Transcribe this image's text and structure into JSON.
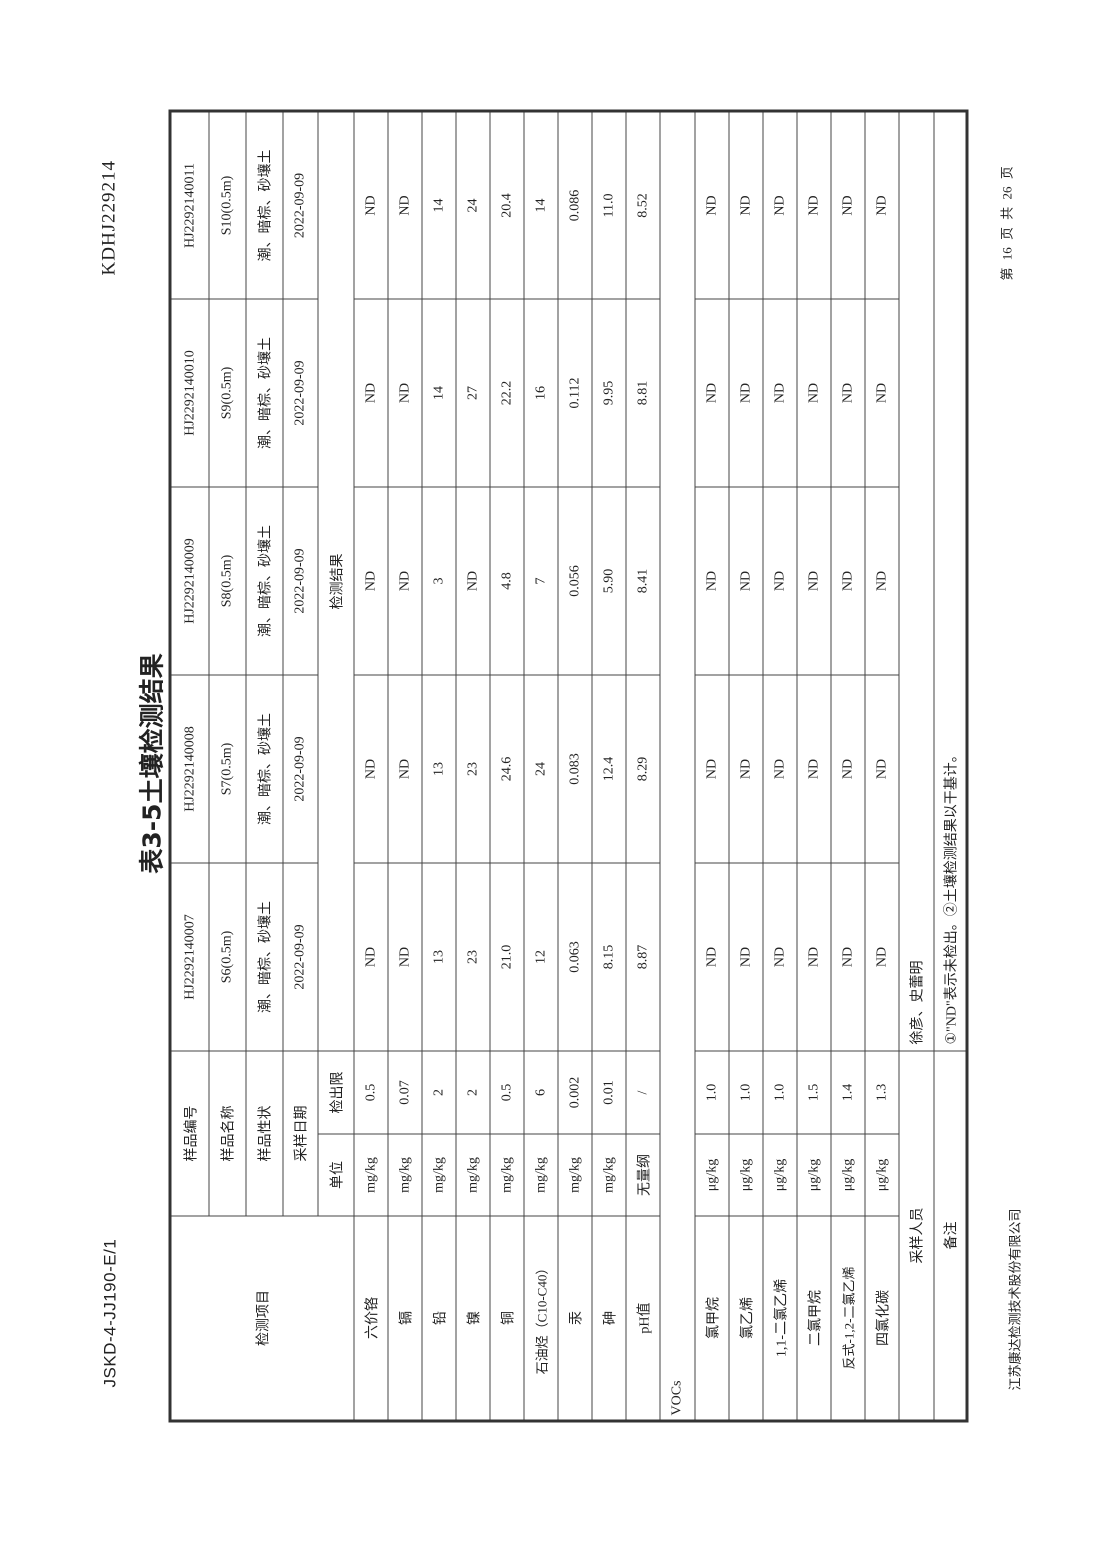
{
  "header": {
    "doc_code": "JSKD-4-JJ190-E/1",
    "report_no": "KDHJ229214"
  },
  "title": "表3-5土壤检测结果",
  "footer": {
    "company": "江苏康达检测技术股份有限公司",
    "page": "第 16 页 共 26 页"
  },
  "table": {
    "item_header": "检测项目",
    "meta_labels": [
      "样品编号",
      "样品名称",
      "样品性状",
      "采样日期"
    ],
    "unit_header": "单位",
    "limit_header": "检出限",
    "result_header": "检测结果",
    "samples": [
      {
        "id": "HJ2292140007",
        "name": "S6(0.5m)",
        "property": "潮、暗棕、砂壤土",
        "date": "2022-09-09"
      },
      {
        "id": "HJ2292140008",
        "name": "S7(0.5m)",
        "property": "潮、暗棕、砂壤土",
        "date": "2022-09-09"
      },
      {
        "id": "HJ2292140009",
        "name": "S8(0.5m)",
        "property": "潮、暗棕、砂壤土",
        "date": "2022-09-09"
      },
      {
        "id": "HJ2292140010",
        "name": "S9(0.5m)",
        "property": "潮、暗棕、砂壤土",
        "date": "2022-09-09"
      },
      {
        "id": "HJ2292140011",
        "name": "S10(0.5m)",
        "property": "潮、暗棕、砂壤土",
        "date": "2022-09-09"
      }
    ],
    "rows": [
      {
        "item": "六价铬",
        "unit": "mg/kg",
        "limit": "0.5",
        "values": [
          "ND",
          "ND",
          "ND",
          "ND",
          "ND"
        ]
      },
      {
        "item": "镉",
        "unit": "mg/kg",
        "limit": "0.07",
        "values": [
          "ND",
          "ND",
          "ND",
          "ND",
          "ND"
        ]
      },
      {
        "item": "铅",
        "unit": "mg/kg",
        "limit": "2",
        "values": [
          "13",
          "13",
          "3",
          "14",
          "14"
        ]
      },
      {
        "item": "镍",
        "unit": "mg/kg",
        "limit": "2",
        "values": [
          "23",
          "23",
          "ND",
          "27",
          "24"
        ]
      },
      {
        "item": "铜",
        "unit": "mg/kg",
        "limit": "0.5",
        "values": [
          "21.0",
          "24.6",
          "4.8",
          "22.2",
          "20.4"
        ]
      },
      {
        "item": "石油烃（C10-C40）",
        "unit": "mg/kg",
        "limit": "6",
        "values": [
          "12",
          "24",
          "7",
          "16",
          "14"
        ]
      },
      {
        "item": "汞",
        "unit": "mg/kg",
        "limit": "0.002",
        "values": [
          "0.063",
          "0.083",
          "0.056",
          "0.112",
          "0.086"
        ]
      },
      {
        "item": "砷",
        "unit": "mg/kg",
        "limit": "0.01",
        "values": [
          "8.15",
          "12.4",
          "5.90",
          "9.95",
          "11.0"
        ]
      },
      {
        "item": "pH值",
        "unit": "无量纲",
        "limit": "/",
        "values": [
          "8.87",
          "8.29",
          "8.41",
          "8.81",
          "8.52"
        ]
      }
    ],
    "group_label": "VOCs",
    "voc_rows": [
      {
        "item": "氯甲烷",
        "unit": "μg/kg",
        "limit": "1.0",
        "values": [
          "ND",
          "ND",
          "ND",
          "ND",
          "ND"
        ]
      },
      {
        "item": "氯乙烯",
        "unit": "μg/kg",
        "limit": "1.0",
        "values": [
          "ND",
          "ND",
          "ND",
          "ND",
          "ND"
        ]
      },
      {
        "item": "1,1-二氯乙烯",
        "unit": "μg/kg",
        "limit": "1.0",
        "values": [
          "ND",
          "ND",
          "ND",
          "ND",
          "ND"
        ]
      },
      {
        "item": "二氯甲烷",
        "unit": "μg/kg",
        "limit": "1.5",
        "values": [
          "ND",
          "ND",
          "ND",
          "ND",
          "ND"
        ]
      },
      {
        "item": "反式-1,2-二氯乙烯",
        "unit": "μg/kg",
        "limit": "1.4",
        "values": [
          "ND",
          "ND",
          "ND",
          "ND",
          "ND"
        ]
      },
      {
        "item": "四氯化碳",
        "unit": "μg/kg",
        "limit": "1.3",
        "values": [
          "ND",
          "ND",
          "ND",
          "ND",
          "ND"
        ]
      }
    ],
    "sampler_label": "采样人员",
    "sampler_value": "徐彦、史蕾明",
    "remark_label": "备注",
    "remark_value": "①\"ND\"表示未检出。②土壤检测结果以干基计。"
  }
}
